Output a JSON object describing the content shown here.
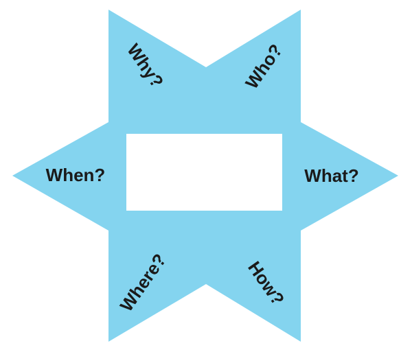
{
  "diagram": {
    "shape": "six-point star with central blank box",
    "fill_color": "#84d4ef",
    "center_box_color": "#ffffff",
    "text_color": "#1a1a1a",
    "labels": {
      "why": "Why?",
      "who": "Who?",
      "when": "When?",
      "what": "What?",
      "where": "Where?",
      "how": "How?"
    }
  }
}
